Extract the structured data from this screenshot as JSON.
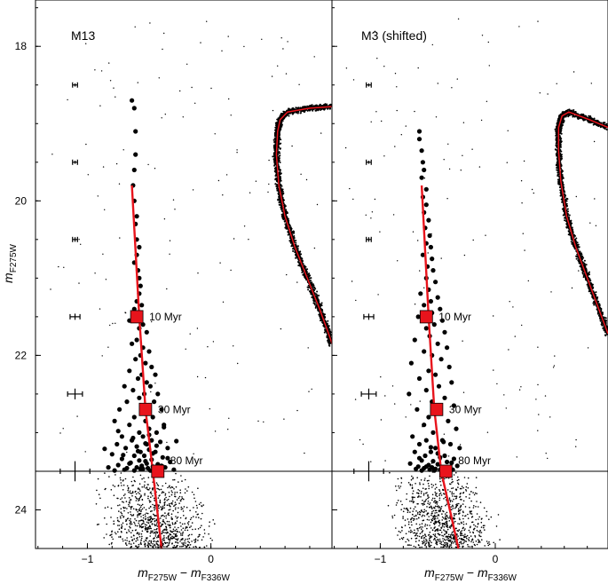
{
  "chart_data": [
    {
      "type": "scatter",
      "title": "M13",
      "xlabel": "m_F275W − m_F336W",
      "ylabel": "m_F275W",
      "xlim": [
        -1.42,
        0.98
      ],
      "ylim": [
        24.5,
        17.4
      ],
      "y_inverted": true,
      "xticks": [
        -1,
        0
      ],
      "yticks": [
        18,
        20,
        22,
        24
      ],
      "grid": false,
      "colors": {
        "isochrone": "#e8141c",
        "markers": "#e8141c",
        "points": "#000000"
      },
      "isochrone_line": {
        "x": [
          -0.64,
          -0.58,
          -0.53,
          -0.47,
          -0.4
        ],
        "y": [
          19.8,
          21.5,
          22.7,
          23.5,
          24.5
        ]
      },
      "age_markers": [
        {
          "label": "10 Myr",
          "x": -0.6,
          "y": 21.5
        },
        {
          "label": "30 Myr",
          "x": -0.53,
          "y": 22.7
        },
        {
          "label": "80 Myr",
          "x": -0.43,
          "y": 23.5
        }
      ],
      "limit_magnitude": 23.5,
      "error_bars": [
        {
          "y": 18.5,
          "xerr": 0.02,
          "yerr": 0.02
        },
        {
          "y": 19.5,
          "xerr": 0.02,
          "yerr": 0.02
        },
        {
          "y": 20.5,
          "xerr": 0.02,
          "yerr": 0.03
        },
        {
          "y": 21.5,
          "xerr": 0.04,
          "yerr": 0.04
        },
        {
          "y": 22.5,
          "xerr": 0.06,
          "yerr": 0.07
        },
        {
          "y": 23.5,
          "xerr": 0.12,
          "yerr": 0.13
        }
      ],
      "blue_stragglers": {
        "x": [
          -0.64,
          -0.62,
          -0.61,
          -0.61,
          -0.62,
          -0.63,
          -0.62,
          -0.6,
          -0.61,
          -0.6,
          -0.58,
          -0.6,
          -0.62,
          -0.59,
          -0.58,
          -0.57,
          -0.58,
          -0.6,
          -0.56,
          -0.62,
          -0.66,
          -0.55,
          -0.58,
          -0.52,
          -0.6,
          -0.64,
          -0.55,
          -0.5,
          -0.57,
          -0.61,
          -0.53,
          -0.48,
          -0.66,
          -0.56,
          -0.45,
          -0.59,
          -0.52,
          -0.7,
          -0.49,
          -0.63,
          -0.43,
          -0.54,
          -0.58,
          -0.68,
          -0.46,
          -0.51,
          -0.74,
          -0.4,
          -0.56,
          -0.62,
          -0.47,
          -0.78,
          -0.53,
          -0.38,
          -0.66,
          -0.5,
          -0.58,
          -0.44,
          -0.72,
          -0.55,
          -0.48,
          -0.64,
          -0.41,
          -0.76,
          -0.52,
          -0.6,
          -0.35,
          -0.69,
          -0.5,
          -0.57,
          -0.45,
          -0.8,
          -0.54,
          -0.62,
          -0.39,
          -0.72,
          -0.48,
          -0.58,
          -0.33,
          -0.66,
          -0.52,
          -0.43,
          -0.75,
          -0.56,
          -0.47,
          -0.83,
          -0.6,
          -0.37,
          -0.68,
          -0.51,
          -0.42,
          -0.55,
          -0.7,
          -0.46,
          -0.3,
          -0.62,
          -0.49,
          -0.78,
          -0.57,
          -0.4,
          -0.65,
          -0.53,
          -0.35,
          -0.71,
          -0.47,
          -0.59,
          -0.86,
          -0.44,
          -0.53,
          -0.28,
          -0.63,
          -0.5,
          -0.75,
          -0.38
        ],
        "y": [
          18.7,
          18.8,
          19.1,
          19.4,
          19.6,
          19.8,
          20.0,
          20.2,
          20.3,
          20.5,
          20.6,
          20.7,
          20.8,
          20.9,
          21.0,
          21.1,
          21.2,
          21.3,
          21.35,
          21.4,
          21.55,
          21.6,
          21.65,
          21.7,
          21.8,
          21.85,
          21.9,
          21.95,
          22.0,
          22.05,
          22.1,
          22.15,
          22.2,
          22.25,
          22.25,
          22.3,
          22.35,
          22.4,
          22.4,
          22.45,
          22.5,
          22.5,
          22.55,
          22.6,
          22.6,
          22.65,
          22.7,
          22.7,
          22.75,
          22.8,
          22.8,
          22.85,
          22.85,
          22.9,
          22.9,
          22.95,
          23.0,
          23.0,
          23.05,
          23.05,
          23.1,
          23.1,
          23.12,
          23.15,
          23.15,
          23.18,
          23.2,
          23.2,
          23.22,
          23.25,
          23.25,
          23.28,
          23.3,
          23.3,
          23.32,
          23.34,
          23.35,
          23.36,
          23.38,
          23.4,
          23.4,
          23.41,
          23.42,
          23.43,
          23.44,
          23.45,
          23.45,
          23.45,
          23.46,
          23.46,
          23.47,
          23.47,
          23.48,
          23.48,
          23.48,
          23.49,
          23.49,
          23.49,
          23.47,
          23.43,
          23.39,
          23.37,
          23.33,
          23.29,
          23.27,
          23.24,
          23.21,
          23.17,
          23.14,
          23.11,
          23.07,
          23.03,
          22.98,
          22.93
        ]
      },
      "rgb_ridge": {
        "x": [
          0.98,
          0.8,
          0.62,
          0.56,
          0.54,
          0.53,
          0.55,
          0.6,
          0.68,
          0.78,
          0.88,
          0.96,
          0.98
        ],
        "y": [
          18.78,
          18.8,
          18.85,
          18.95,
          19.1,
          19.4,
          19.8,
          20.2,
          20.6,
          21.0,
          21.4,
          21.75,
          21.85
        ]
      }
    },
    {
      "type": "scatter",
      "title": "M3 (shifted)",
      "xlabel": "m_F275W − m_F336W",
      "xlim": [
        -1.42,
        0.98
      ],
      "ylim": [
        24.5,
        17.4
      ],
      "y_inverted": true,
      "xticks": [
        -1,
        0
      ],
      "yticks": [
        18,
        20,
        22,
        24
      ],
      "grid": false,
      "colors": {
        "isochrone": "#e8141c",
        "markers": "#e8141c",
        "points": "#000000"
      },
      "isochrone_line": {
        "x": [
          -0.64,
          -0.58,
          -0.53,
          -0.47,
          -0.32
        ],
        "y": [
          19.8,
          21.5,
          22.7,
          23.5,
          24.5
        ]
      },
      "age_markers": [
        {
          "label": "10 Myr",
          "x": -0.6,
          "y": 21.5
        },
        {
          "label": "30 Myr",
          "x": -0.51,
          "y": 22.7
        },
        {
          "label": "80 Myr",
          "x": -0.43,
          "y": 23.5
        }
      ],
      "limit_magnitude": 23.5,
      "error_bars": [
        {
          "y": 18.5,
          "xerr": 0.02,
          "yerr": 0.02
        },
        {
          "y": 19.5,
          "xerr": 0.02,
          "yerr": 0.02
        },
        {
          "y": 20.5,
          "xerr": 0.02,
          "yerr": 0.03
        },
        {
          "y": 21.5,
          "xerr": 0.04,
          "yerr": 0.04
        },
        {
          "y": 22.5,
          "xerr": 0.06,
          "yerr": 0.07
        },
        {
          "y": 23.5,
          "xerr": 0.12,
          "yerr": 0.13
        }
      ],
      "blue_stragglers": {
        "x": [
          -0.66,
          -0.66,
          -0.64,
          -0.63,
          -0.62,
          -0.64,
          -0.6,
          -0.63,
          -0.6,
          -0.62,
          -0.58,
          -0.61,
          -0.57,
          -0.6,
          -0.56,
          -0.63,
          -0.55,
          -0.59,
          -0.54,
          -0.6,
          -0.52,
          -0.58,
          -0.65,
          -0.5,
          -0.56,
          -0.62,
          -0.48,
          -0.55,
          -0.67,
          -0.46,
          -0.53,
          -0.6,
          -0.44,
          -0.57,
          -0.7,
          -0.5,
          -0.42,
          -0.62,
          -0.55,
          -0.47,
          -0.73,
          -0.4,
          -0.58,
          -0.52,
          -0.66,
          -0.38,
          -0.49,
          -0.6,
          -0.75,
          -0.44,
          -0.55,
          -0.36,
          -0.68,
          -0.5,
          -0.58,
          -0.41,
          -0.62,
          -0.34,
          -0.54,
          -0.72,
          -0.46,
          -0.6,
          -0.39,
          -0.66,
          -0.52,
          -0.31,
          -0.56,
          -0.7,
          -0.44,
          -0.61,
          -0.48,
          -0.36,
          -0.64,
          -0.54,
          -0.42,
          -0.74,
          -0.5,
          -0.58,
          -0.33,
          -0.67,
          -0.46,
          -0.55,
          -0.4,
          -0.62,
          -0.52,
          -0.69,
          -0.37,
          -0.57,
          -0.48,
          -0.64,
          -0.44,
          -0.53,
          -0.6,
          -0.38,
          -0.66,
          -0.5,
          -0.56,
          -0.45
        ],
        "y": [
          19.1,
          19.2,
          19.35,
          19.5,
          19.6,
          19.7,
          19.85,
          19.95,
          20.05,
          20.15,
          20.25,
          20.35,
          20.45,
          20.55,
          20.6,
          20.7,
          20.75,
          20.85,
          20.9,
          21.0,
          21.05,
          21.15,
          21.2,
          21.25,
          21.3,
          21.35,
          21.4,
          21.45,
          21.5,
          21.55,
          21.6,
          21.65,
          21.7,
          21.75,
          21.8,
          21.85,
          21.9,
          21.95,
          22.0,
          22.05,
          22.1,
          22.15,
          22.2,
          22.25,
          22.3,
          22.35,
          22.4,
          22.45,
          22.5,
          22.55,
          22.6,
          22.65,
          22.7,
          22.75,
          22.8,
          22.85,
          22.9,
          22.95,
          23.0,
          23.05,
          23.1,
          23.1,
          23.15,
          23.15,
          23.2,
          23.2,
          23.25,
          23.25,
          23.3,
          23.3,
          23.32,
          23.34,
          23.36,
          23.37,
          23.38,
          23.4,
          23.41,
          23.42,
          23.43,
          23.44,
          23.45,
          23.45,
          23.46,
          23.46,
          23.47,
          23.47,
          23.48,
          23.48,
          23.48,
          23.49,
          23.49,
          23.49,
          23.44,
          23.39,
          23.33,
          23.27,
          23.19,
          23.12
        ]
      },
      "rgb_ridge": {
        "x": [
          0.98,
          0.82,
          0.64,
          0.58,
          0.55,
          0.55,
          0.57,
          0.62,
          0.7,
          0.8,
          0.9,
          0.98
        ],
        "y": [
          19.05,
          18.95,
          18.85,
          18.9,
          19.05,
          19.35,
          19.75,
          20.2,
          20.6,
          21.0,
          21.4,
          21.72
        ]
      }
    }
  ]
}
